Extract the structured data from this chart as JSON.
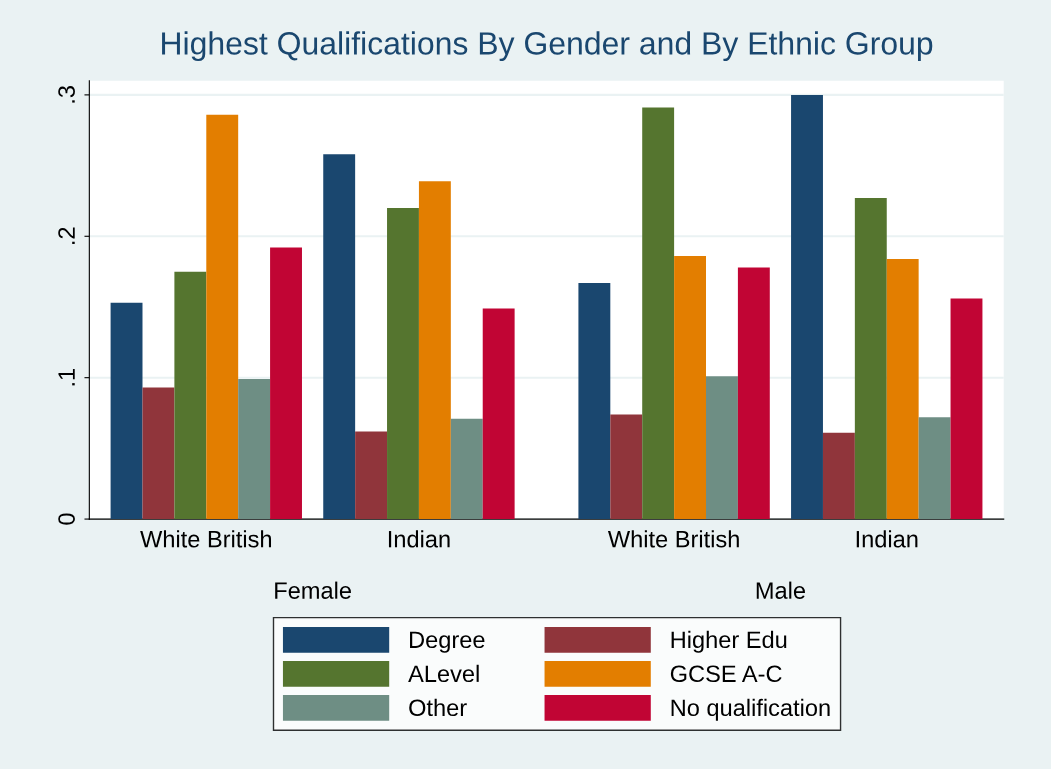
{
  "chart_data": {
    "type": "bar",
    "title": "Highest Qualifications By Gender and By Ethnic Group",
    "categories": [
      "White British",
      "Indian",
      "White British",
      "Indian"
    ],
    "annotations": [
      "Female",
      "Male"
    ],
    "series": [
      {
        "name": "Degree",
        "color": "#1a476f",
        "values": [
          0.153,
          0.258,
          0.167,
          0.3
        ]
      },
      {
        "name": "Higher Edu",
        "color": "#90353b",
        "values": [
          0.093,
          0.062,
          0.074,
          0.061
        ]
      },
      {
        "name": "ALevel",
        "color": "#55752f",
        "values": [
          0.175,
          0.22,
          0.291,
          0.227
        ]
      },
      {
        "name": "GCSE A-C",
        "color": "#e37e00",
        "values": [
          0.286,
          0.239,
          0.186,
          0.184
        ]
      },
      {
        "name": "Other",
        "color": "#6e8e84",
        "values": [
          0.099,
          0.071,
          0.101,
          0.072
        ]
      },
      {
        "name": "No qualification",
        "color": "#c10534",
        "values": [
          0.192,
          0.149,
          0.178,
          0.156
        ]
      }
    ],
    "ylim": [
      0,
      0.31
    ],
    "yticks": [
      0,
      {
        "value": 0.1,
        "label": ".1"
      },
      {
        "value": 0.2,
        "label": ".2"
      },
      {
        "value": 0.3,
        "label": ".3"
      }
    ],
    "grid": "y",
    "legend": "bottom"
  }
}
